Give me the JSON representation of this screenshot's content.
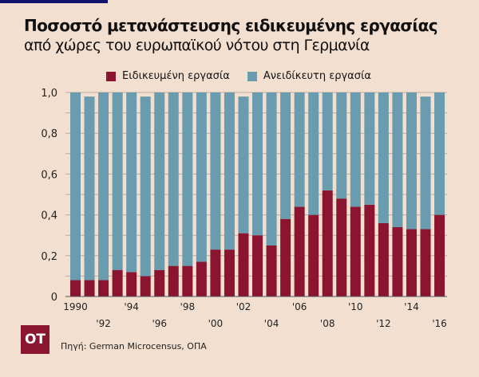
{
  "title": "Ποσοστό μετανάστευσης ειδικευμένης εργασίας",
  "subtitle": "από χώρες του ευρωπαϊκού νότου στη Γερμανία",
  "source": "Πηγή:  German Microcensus, ΟΠΑ",
  "logo": "OT",
  "colors": {
    "skilled": "#8b1530",
    "unskilled": "#6a9caf",
    "background": "#f3dfcf",
    "accent_bar": "#12136b"
  },
  "chart_data": {
    "type": "bar",
    "stacked": true,
    "x": [
      1990,
      1991,
      1992,
      1993,
      1994,
      1995,
      1996,
      1997,
      1998,
      1999,
      2000,
      2001,
      2002,
      2003,
      2004,
      2005,
      2006,
      2007,
      2008,
      2009,
      2010,
      2011,
      2012,
      2013,
      2014,
      2015,
      2016
    ],
    "tick_labels": [
      "1990",
      "'92",
      "'94",
      "'96",
      "'98",
      "'00",
      "'02",
      "'04",
      "'06",
      "'08",
      "'10",
      "'12",
      "'14",
      "'16"
    ],
    "tick_years": [
      1990,
      1992,
      1994,
      1996,
      1998,
      2000,
      2002,
      2004,
      2006,
      2008,
      2010,
      2012,
      2014,
      2016
    ],
    "series": [
      {
        "name": "Ειδικευμένη εργασία",
        "color": "#8b1530",
        "values": [
          0.08,
          0.08,
          0.08,
          0.13,
          0.12,
          0.1,
          0.13,
          0.15,
          0.15,
          0.17,
          0.23,
          0.23,
          0.31,
          0.3,
          0.25,
          0.38,
          0.44,
          0.4,
          0.52,
          0.48,
          0.44,
          0.45,
          0.36,
          0.34,
          0.33,
          0.33,
          0.4
        ]
      },
      {
        "name": "Ανειδίκευτη εργασία",
        "color": "#6a9caf",
        "values": [
          0.92,
          0.9,
          0.92,
          0.87,
          0.88,
          0.88,
          0.87,
          0.85,
          0.85,
          0.83,
          0.77,
          0.77,
          0.67,
          0.7,
          0.75,
          0.62,
          0.56,
          0.6,
          0.48,
          0.52,
          0.56,
          0.55,
          0.64,
          0.66,
          0.67,
          0.65,
          0.6
        ]
      }
    ],
    "yticks": [
      "0",
      "0,2",
      "0,4",
      "0,6",
      "0,8",
      "1,0"
    ],
    "ylim": [
      0,
      1.0
    ],
    "grid": true,
    "legend": "top"
  }
}
